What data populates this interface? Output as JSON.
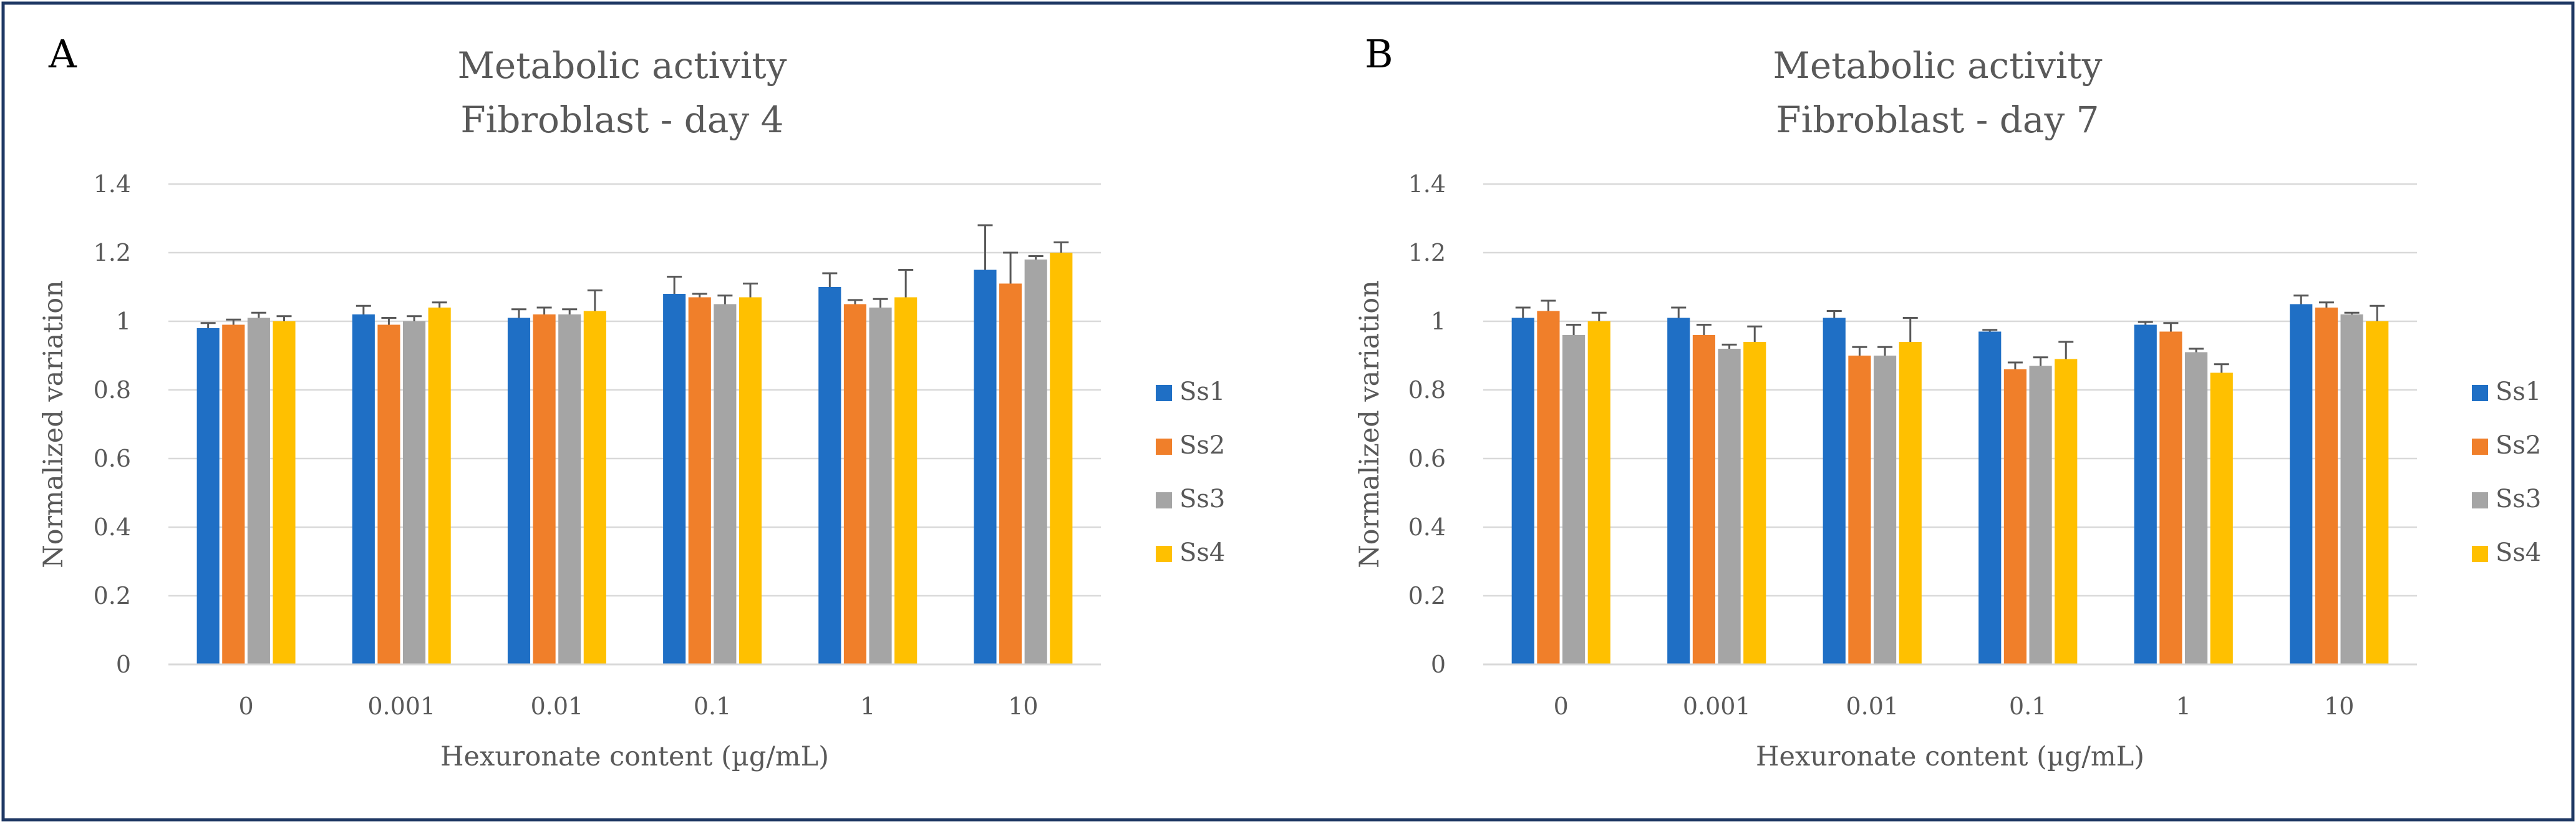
{
  "colors": {
    "Ss1": "#1f6fc5",
    "Ss2": "#f07f2a",
    "Ss3": "#a5a5a5",
    "Ss4": "#ffc000",
    "frame": "#1f3864",
    "grid": "#d9d9d9",
    "text": "#595959"
  },
  "chart_data": [
    {
      "type": "bar",
      "panel_label": "A",
      "title": "Metabolic activity",
      "subtitle": "Fibroblast - day 4",
      "xlabel": "Hexuronate content (µg/mL)",
      "ylabel": "Normalized variation",
      "ylim": [
        0,
        1.4
      ],
      "yticks": [
        "0",
        "0.2",
        "0.4",
        "0.6",
        "0.8",
        "1",
        "1.2",
        "1.4"
      ],
      "grid": true,
      "legend_position": "right",
      "categories": [
        "0",
        "0.001",
        "0.01",
        "0.1",
        "1",
        "10"
      ],
      "series": [
        {
          "name": "Ss1",
          "values": [
            0.98,
            1.02,
            1.01,
            1.08,
            1.1,
            1.15
          ],
          "errors": [
            0.015,
            0.025,
            0.025,
            0.05,
            0.04,
            0.13
          ]
        },
        {
          "name": "Ss2",
          "values": [
            0.99,
            0.99,
            1.02,
            1.07,
            1.05,
            1.11
          ],
          "errors": [
            0.015,
            0.02,
            0.02,
            0.01,
            0.012,
            0.09
          ]
        },
        {
          "name": "Ss3",
          "values": [
            1.01,
            1.0,
            1.02,
            1.05,
            1.04,
            1.18
          ],
          "errors": [
            0.015,
            0.015,
            0.015,
            0.025,
            0.025,
            0.01
          ]
        },
        {
          "name": "Ss4",
          "values": [
            1.0,
            1.04,
            1.03,
            1.07,
            1.07,
            1.2
          ],
          "errors": [
            0.015,
            0.015,
            0.06,
            0.04,
            0.08,
            0.03
          ]
        }
      ]
    },
    {
      "type": "bar",
      "panel_label": "B",
      "title": "Metabolic activity",
      "subtitle": "Fibroblast - day 7",
      "xlabel": "Hexuronate content (µg/mL)",
      "ylabel": "Normalized variation",
      "ylim": [
        0,
        1.4
      ],
      "yticks": [
        "0",
        "0.2",
        "0.4",
        "0.6",
        "0.8",
        "1",
        "1.2",
        "1.4"
      ],
      "grid": true,
      "legend_position": "right",
      "categories": [
        "0",
        "0.001",
        "0.01",
        "0.1",
        "1",
        "10"
      ],
      "series": [
        {
          "name": "Ss1",
          "values": [
            1.01,
            1.01,
            1.01,
            0.97,
            0.99,
            1.05
          ],
          "errors": [
            0.03,
            0.03,
            0.02,
            0.005,
            0.008,
            0.025
          ]
        },
        {
          "name": "Ss2",
          "values": [
            1.03,
            0.96,
            0.9,
            0.86,
            0.97,
            1.04
          ],
          "errors": [
            0.03,
            0.03,
            0.025,
            0.02,
            0.025,
            0.015
          ]
        },
        {
          "name": "Ss3",
          "values": [
            0.96,
            0.92,
            0.9,
            0.87,
            0.91,
            1.02
          ],
          "errors": [
            0.03,
            0.012,
            0.025,
            0.025,
            0.01,
            0.005
          ]
        },
        {
          "name": "Ss4",
          "values": [
            1.0,
            0.94,
            0.94,
            0.89,
            0.85,
            1.0
          ],
          "errors": [
            0.025,
            0.045,
            0.07,
            0.05,
            0.025,
            0.045
          ]
        }
      ]
    }
  ]
}
